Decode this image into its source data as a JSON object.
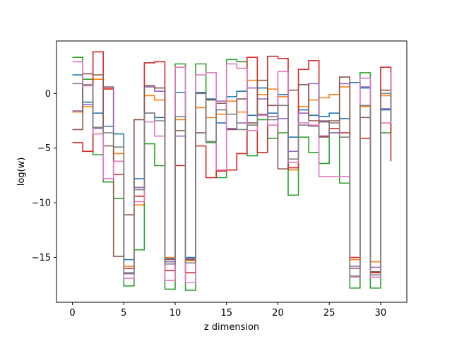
{
  "chart_data": {
    "type": "line",
    "drawstyle": "steps-post",
    "xlabel": "z dimension",
    "ylabel": "log(w)",
    "xlim": [
      -1.55,
      32.55
    ],
    "ylim": [
      -19.1,
      4.8
    ],
    "xticks": [
      0,
      5,
      10,
      15,
      20,
      25,
      30
    ],
    "yticks": [
      0,
      -5,
      -10,
      -15
    ],
    "grid": false,
    "series": [
      {
        "color": "#1f77b4",
        "values": [
          1.7,
          -0.8,
          -1.8,
          -3.0,
          -3.7,
          -15.2,
          -7.8,
          -1.8,
          -2.2,
          -15.1,
          0.1,
          -15.0,
          0.1,
          -0.5,
          -2.7,
          -0.3,
          0.2,
          -2.0,
          0.5,
          -1.8,
          -0.1,
          -4.0,
          -1.5,
          -2.0,
          -2.1,
          -1.8,
          -2.3,
          1.0,
          0.5,
          -15.4,
          -1.5,
          -0.3
        ]
      },
      {
        "color": "#ff7f0e",
        "values": [
          -1.7,
          -1.2,
          1.3,
          0.5,
          -5.5,
          -15.8,
          -10.2,
          -0.2,
          -0.6,
          -15.0,
          -2.4,
          -15.3,
          -1.3,
          -2.2,
          -1.9,
          -0.7,
          -1.7,
          1.2,
          -0.1,
          0.4,
          -0.3,
          -7.0,
          -1.2,
          -0.6,
          -0.4,
          -0.1,
          0.6,
          -15.2,
          -1.2,
          -15.4,
          -0.2,
          1.7
        ]
      },
      {
        "color": "#2ca02c",
        "values": [
          3.3,
          1.3,
          -5.6,
          -8.1,
          -9.6,
          -17.6,
          -14.3,
          -4.6,
          -6.6,
          -17.9,
          2.7,
          -18.0,
          2.7,
          -4.5,
          -7.7,
          3.1,
          2.9,
          -5.7,
          -2.4,
          -4.1,
          -3.6,
          -9.3,
          -4.0,
          -5.4,
          -6.4,
          -3.6,
          -8.2,
          -17.8,
          1.9,
          -17.8,
          -3.6,
          1.8
        ]
      },
      {
        "color": "#d62728",
        "values": [
          -4.5,
          -5.3,
          3.8,
          0.4,
          -7.4,
          -16.0,
          -9.4,
          2.8,
          2.9,
          -16.2,
          -6.6,
          -16.4,
          -4.8,
          -7.7,
          -7.1,
          -7.0,
          -5.5,
          3.3,
          -5.4,
          3.4,
          3.2,
          -6.8,
          2.2,
          3.0,
          -3.9,
          -3.2,
          -3.6,
          -15.0,
          -4.1,
          -16.4,
          2.4,
          -6.2
        ]
      },
      {
        "color": "#9467bd",
        "values": [
          -1.6,
          -1.0,
          -3.2,
          0.6,
          -6.2,
          -16.4,
          -8.6,
          0.6,
          0.2,
          -15.4,
          -3.9,
          -15.1,
          0.0,
          -4.4,
          -0.7,
          -3.2,
          -2.7,
          0.5,
          -0.5,
          -2.1,
          -2.3,
          -5.3,
          -1.8,
          0.9,
          -2.5,
          -3.6,
          0.9,
          -15.8,
          0.6,
          -15.9,
          -1.4,
          -0.6
        ]
      },
      {
        "color": "#8c564b",
        "values": [
          -3.3,
          1.8,
          1.7,
          -4.8,
          -14.9,
          -11.1,
          -2.4,
          0.7,
          0.5,
          -15.2,
          -3.4,
          -15.2,
          -3.6,
          -0.6,
          -0.9,
          -3.3,
          -0.5,
          -2.7,
          1.2,
          -1.1,
          -6.9,
          0.3,
          0.8,
          -2.5,
          -2.6,
          -2.5,
          1.5,
          -16.0,
          -2.2,
          -16.3,
          0.3,
          -2.5
        ]
      },
      {
        "color": "#e377c2",
        "values": [
          2.9,
          0.7,
          -3.7,
          -7.8,
          -6.2,
          -16.9,
          -9.9,
          -2.6,
          -3.9,
          -17.1,
          2.4,
          -17.3,
          1.7,
          1.9,
          -7.0,
          2.7,
          2.3,
          -3.4,
          -2.0,
          -2.9,
          2.0,
          -6.3,
          -2.7,
          -2.9,
          -7.6,
          -7.6,
          -7.6,
          -16.8,
          1.4,
          -16.8,
          -2.7,
          1.9
        ]
      },
      {
        "color": "#7f7f7f",
        "values": [
          0.9,
          0.8,
          -3.1,
          -3.6,
          -4.9,
          -16.5,
          -8.8,
          -1.8,
          -2.5,
          -15.6,
          -2.1,
          -15.5,
          0.0,
          -4.4,
          -1.5,
          -1.9,
          -3.3,
          -2.9,
          -1.9,
          -2.4,
          -1.1,
          -6.0,
          -2.9,
          -3.0,
          -4.0,
          -2.7,
          -4.0,
          -16.7,
          -1.1,
          -16.6,
          0.0,
          -2.5
        ]
      }
    ]
  }
}
